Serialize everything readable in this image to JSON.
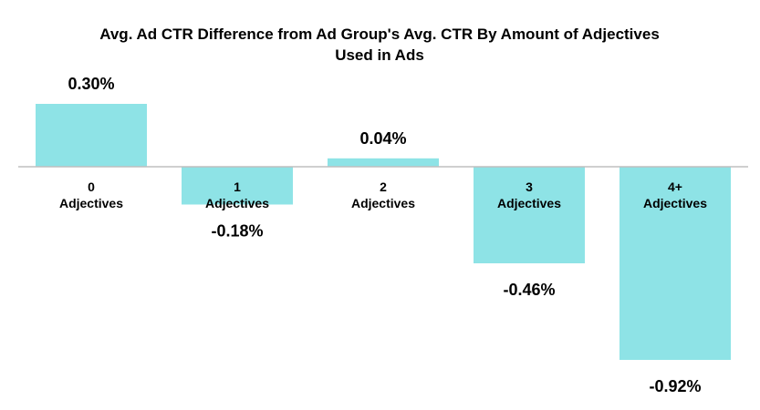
{
  "chart_data": {
    "type": "bar",
    "title_lines": [
      "Avg. Ad CTR Difference from Ad Group's Avg. CTR By Amount of Adjectives",
      "Used in Ads"
    ],
    "categories": [
      [
        "0",
        "Adjectives"
      ],
      [
        "1",
        "Adjectives"
      ],
      [
        "2",
        "Adjectives"
      ],
      [
        "3",
        "Adjectives"
      ],
      [
        "4+",
        "Adjectives"
      ]
    ],
    "values": [
      0.3,
      -0.18,
      0.04,
      -0.46,
      -0.92
    ],
    "value_labels": [
      "0.30%",
      "-0.18%",
      "0.04%",
      "-0.46%",
      "-0.92%"
    ],
    "ylim": [
      -0.92,
      0.3
    ],
    "grid": false,
    "legend": "none",
    "bar_color": "#8ee3e6",
    "axis_color": "#bfbfbf"
  }
}
